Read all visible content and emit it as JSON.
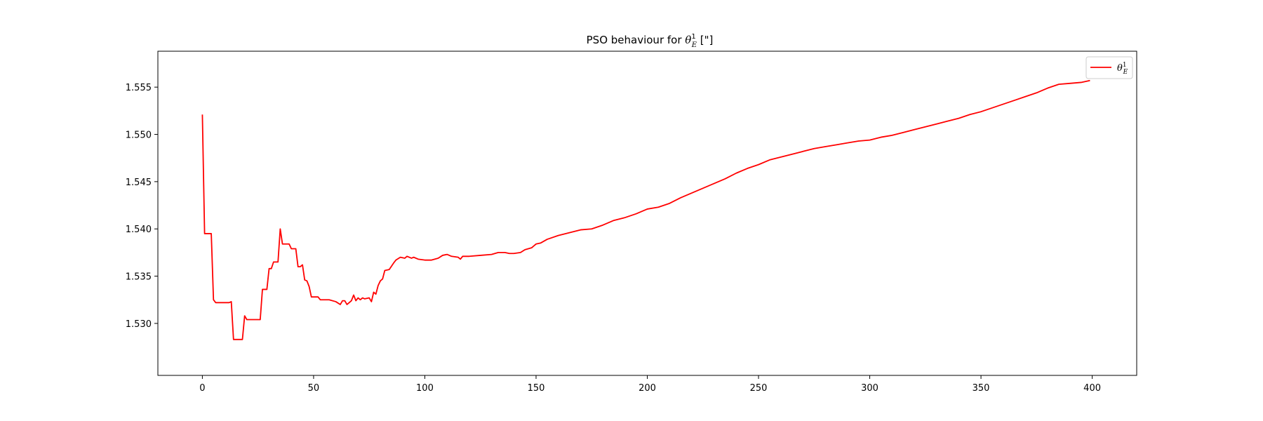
{
  "chart_data": {
    "type": "line",
    "title": "PSO behaviour for θ¹E [\"]",
    "title_parts": {
      "prefix": "PSO behaviour for ",
      "symbol": "θ",
      "superscript": "1",
      "subscript": "E",
      "suffix": " [\"]"
    },
    "xlabel": "",
    "ylabel": "",
    "xlim": [
      -20,
      420
    ],
    "ylim": [
      1.5245,
      1.5588
    ],
    "x_ticks": [
      0,
      50,
      100,
      150,
      200,
      250,
      300,
      350,
      400
    ],
    "y_ticks": [
      1.53,
      1.535,
      1.54,
      1.545,
      1.55,
      1.555
    ],
    "y_tick_labels": [
      "1.530",
      "1.535",
      "1.540",
      "1.545",
      "1.550",
      "1.555"
    ],
    "grid": false,
    "legend_position": "top-right",
    "series": [
      {
        "name": "θ¹E",
        "legend_symbol": "θ",
        "legend_superscript": "1",
        "legend_subscript": "E",
        "color": "#ff0000",
        "points": [
          [
            0,
            1.5521
          ],
          [
            1,
            1.5395
          ],
          [
            2,
            1.5395
          ],
          [
            3,
            1.5395
          ],
          [
            4,
            1.5395
          ],
          [
            5,
            1.5325
          ],
          [
            6,
            1.5322
          ],
          [
            12,
            1.5322
          ],
          [
            13,
            1.5323
          ],
          [
            14,
            1.5283
          ],
          [
            18,
            1.5283
          ],
          [
            19,
            1.5308
          ],
          [
            20,
            1.5304
          ],
          [
            26,
            1.5304
          ],
          [
            27,
            1.5336
          ],
          [
            29,
            1.5336
          ],
          [
            30,
            1.5358
          ],
          [
            31,
            1.5358
          ],
          [
            32,
            1.5365
          ],
          [
            34,
            1.5365
          ],
          [
            35,
            1.54
          ],
          [
            36,
            1.5384
          ],
          [
            39,
            1.5384
          ],
          [
            40,
            1.5379
          ],
          [
            42,
            1.5379
          ],
          [
            43,
            1.536
          ],
          [
            44,
            1.536
          ],
          [
            45,
            1.5362
          ],
          [
            46,
            1.5346
          ],
          [
            47,
            1.5345
          ],
          [
            48,
            1.5339
          ],
          [
            49,
            1.5328
          ],
          [
            52,
            1.5328
          ],
          [
            53,
            1.5325
          ],
          [
            57,
            1.5325
          ],
          [
            60,
            1.5323
          ],
          [
            62,
            1.532
          ],
          [
            63,
            1.5324
          ],
          [
            64,
            1.5324
          ],
          [
            65,
            1.532
          ],
          [
            66,
            1.5322
          ],
          [
            67,
            1.5324
          ],
          [
            68,
            1.533
          ],
          [
            69,
            1.5324
          ],
          [
            70,
            1.5327
          ],
          [
            71,
            1.5325
          ],
          [
            72,
            1.5327
          ],
          [
            73,
            1.5326
          ],
          [
            75,
            1.5327
          ],
          [
            76,
            1.5323
          ],
          [
            77,
            1.5333
          ],
          [
            78,
            1.5331
          ],
          [
            79,
            1.534
          ],
          [
            80,
            1.5345
          ],
          [
            81,
            1.5347
          ],
          [
            82,
            1.5356
          ],
          [
            84,
            1.5357
          ],
          [
            86,
            1.5364
          ],
          [
            87,
            1.5367
          ],
          [
            89,
            1.537
          ],
          [
            91,
            1.5369
          ],
          [
            92,
            1.5371
          ],
          [
            94,
            1.5369
          ],
          [
            95,
            1.537
          ],
          [
            97,
            1.5368
          ],
          [
            100,
            1.5367
          ],
          [
            103,
            1.5367
          ],
          [
            106,
            1.5369
          ],
          [
            108,
            1.5372
          ],
          [
            110,
            1.5373
          ],
          [
            112,
            1.5371
          ],
          [
            115,
            1.537
          ],
          [
            116,
            1.5368
          ],
          [
            117,
            1.5371
          ],
          [
            120,
            1.5371
          ],
          [
            125,
            1.5372
          ],
          [
            130,
            1.5373
          ],
          [
            133,
            1.5375
          ],
          [
            136,
            1.5375
          ],
          [
            138,
            1.5374
          ],
          [
            140,
            1.5374
          ],
          [
            143,
            1.5375
          ],
          [
            145,
            1.5378
          ],
          [
            148,
            1.538
          ],
          [
            150,
            1.5384
          ],
          [
            152,
            1.5385
          ],
          [
            155,
            1.5389
          ],
          [
            160,
            1.5393
          ],
          [
            165,
            1.5396
          ],
          [
            170,
            1.5399
          ],
          [
            175,
            1.54
          ],
          [
            180,
            1.5404
          ],
          [
            185,
            1.5409
          ],
          [
            190,
            1.5412
          ],
          [
            195,
            1.5416
          ],
          [
            200,
            1.5421
          ],
          [
            205,
            1.5423
          ],
          [
            210,
            1.5427
          ],
          [
            215,
            1.5433
          ],
          [
            220,
            1.5438
          ],
          [
            225,
            1.5443
          ],
          [
            230,
            1.5448
          ],
          [
            235,
            1.5453
          ],
          [
            240,
            1.5459
          ],
          [
            245,
            1.5464
          ],
          [
            250,
            1.5468
          ],
          [
            255,
            1.5473
          ],
          [
            260,
            1.5476
          ],
          [
            265,
            1.5479
          ],
          [
            270,
            1.5482
          ],
          [
            275,
            1.5485
          ],
          [
            280,
            1.5487
          ],
          [
            285,
            1.5489
          ],
          [
            290,
            1.5491
          ],
          [
            295,
            1.5493
          ],
          [
            300,
            1.5494
          ],
          [
            305,
            1.5497
          ],
          [
            310,
            1.5499
          ],
          [
            315,
            1.5502
          ],
          [
            320,
            1.5505
          ],
          [
            325,
            1.5508
          ],
          [
            330,
            1.5511
          ],
          [
            335,
            1.5514
          ],
          [
            340,
            1.5517
          ],
          [
            345,
            1.5521
          ],
          [
            350,
            1.5524
          ],
          [
            355,
            1.5528
          ],
          [
            360,
            1.5532
          ],
          [
            365,
            1.5536
          ],
          [
            370,
            1.554
          ],
          [
            375,
            1.5544
          ],
          [
            380,
            1.5549
          ],
          [
            385,
            1.5553
          ],
          [
            390,
            1.5554
          ],
          [
            395,
            1.5555
          ],
          [
            399,
            1.5557
          ]
        ]
      }
    ]
  }
}
